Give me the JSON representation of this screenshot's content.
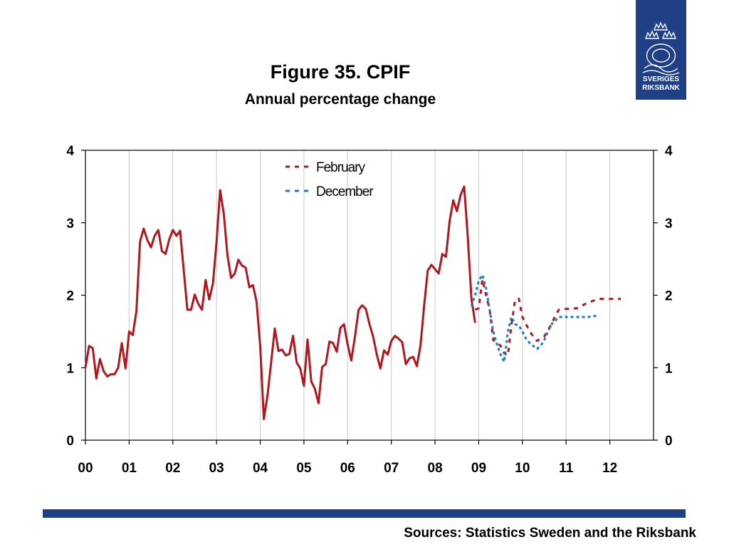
{
  "header": {
    "title": "Figure 35. CPIF",
    "subtitle": "Annual percentage change"
  },
  "logo": {
    "line1": "SVERIGES",
    "line2": "RIKSBANK",
    "color": "#1f3f86"
  },
  "footer": {
    "source": "Sources: Statistics Sweden and the Riksbank",
    "bar_color": "#1f3f86"
  },
  "chart_data": {
    "type": "line",
    "xlim": [
      2000.0,
      2013.0
    ],
    "ylim": [
      0,
      4
    ],
    "yticks": [
      0,
      1,
      2,
      3,
      4
    ],
    "y_axis_both_sides": true,
    "xtick_labels": [
      "00",
      "01",
      "02",
      "03",
      "04",
      "05",
      "06",
      "07",
      "08",
      "09",
      "10",
      "11",
      "12"
    ],
    "xtick_positions": [
      2000,
      2001,
      2002,
      2003,
      2004,
      2005,
      2006,
      2007,
      2008,
      2009,
      2010,
      2011,
      2012
    ],
    "grid": "vertical",
    "legend": {
      "position": "top-center"
    },
    "series": [
      {
        "name": "",
        "color": "#b0171f",
        "style": "solid",
        "x": [
          2000.0,
          2000.083,
          2000.167,
          2000.25,
          2000.333,
          2000.417,
          2000.5,
          2000.583,
          2000.667,
          2000.75,
          2000.833,
          2000.917,
          2001.0,
          2001.083,
          2001.167,
          2001.25,
          2001.333,
          2001.417,
          2001.5,
          2001.583,
          2001.667,
          2001.75,
          2001.833,
          2001.917,
          2002.0,
          2002.083,
          2002.167,
          2002.25,
          2002.333,
          2002.417,
          2002.5,
          2002.583,
          2002.667,
          2002.75,
          2002.833,
          2002.917,
          2003.0,
          2003.083,
          2003.167,
          2003.25,
          2003.333,
          2003.417,
          2003.5,
          2003.583,
          2003.667,
          2003.75,
          2003.833,
          2003.917,
          2004.0,
          2004.083,
          2004.167,
          2004.25,
          2004.333,
          2004.417,
          2004.5,
          2004.583,
          2004.667,
          2004.75,
          2004.833,
          2004.917,
          2005.0,
          2005.083,
          2005.167,
          2005.25,
          2005.333,
          2005.417,
          2005.5,
          2005.583,
          2005.667,
          2005.75,
          2005.833,
          2005.917,
          2006.0,
          2006.083,
          2006.167,
          2006.25,
          2006.333,
          2006.417,
          2006.5,
          2006.583,
          2006.667,
          2006.75,
          2006.833,
          2006.917,
          2007.0,
          2007.083,
          2007.167,
          2007.25,
          2007.333,
          2007.417,
          2007.5,
          2007.583,
          2007.667,
          2007.75,
          2007.833,
          2007.917,
          2008.0,
          2008.083,
          2008.167,
          2008.25,
          2008.333,
          2008.417,
          2008.5,
          2008.583,
          2008.667,
          2008.75,
          2008.833,
          2008.917
        ],
        "y": [
          1.0,
          1.3,
          1.27,
          0.85,
          1.12,
          0.95,
          0.88,
          0.91,
          0.91,
          1.0,
          1.34,
          0.99,
          1.5,
          1.45,
          1.78,
          2.74,
          2.92,
          2.76,
          2.66,
          2.82,
          2.9,
          2.61,
          2.57,
          2.77,
          2.9,
          2.82,
          2.89,
          2.34,
          1.8,
          1.8,
          2.01,
          1.88,
          1.8,
          2.21,
          1.94,
          2.16,
          2.74,
          3.45,
          3.12,
          2.55,
          2.24,
          2.3,
          2.49,
          2.41,
          2.38,
          2.11,
          2.14,
          1.91,
          1.3,
          0.29,
          0.62,
          1.08,
          1.54,
          1.23,
          1.25,
          1.17,
          1.19,
          1.44,
          1.07,
          0.99,
          0.75,
          1.39,
          0.81,
          0.71,
          0.51,
          1.01,
          1.05,
          1.36,
          1.34,
          1.22,
          1.55,
          1.6,
          1.32,
          1.1,
          1.43,
          1.8,
          1.86,
          1.81,
          1.6,
          1.43,
          1.18,
          0.99,
          1.24,
          1.18,
          1.37,
          1.44,
          1.4,
          1.35,
          1.05,
          1.13,
          1.15,
          1.02,
          1.3,
          1.85,
          2.34,
          2.42,
          2.36,
          2.3,
          2.57,
          2.53,
          3.02,
          3.31,
          3.16,
          3.38,
          3.5,
          2.8,
          1.95,
          1.62
        ]
      },
      {
        "name": "February",
        "color": "#b0171f",
        "style": "dashed",
        "x": [
          2008.917,
          2009.0,
          2009.083,
          2009.167,
          2009.25,
          2009.333,
          2009.417,
          2009.5,
          2009.583,
          2009.667,
          2009.75,
          2009.833,
          2009.917,
          2010.0,
          2010.083,
          2010.167,
          2010.25,
          2010.333,
          2010.417,
          2010.5,
          2010.583,
          2010.667,
          2010.75,
          2010.833,
          2010.917,
          2011.0,
          2011.25,
          2011.5,
          2011.75,
          2012.0,
          2012.25
        ],
        "y": [
          1.8,
          1.82,
          2.22,
          2.0,
          1.8,
          1.38,
          1.35,
          1.3,
          1.2,
          1.17,
          1.6,
          1.94,
          1.95,
          1.7,
          1.6,
          1.5,
          1.43,
          1.37,
          1.4,
          1.43,
          1.52,
          1.6,
          1.72,
          1.8,
          1.81,
          1.81,
          1.82,
          1.9,
          1.95,
          1.95,
          1.95
        ]
      },
      {
        "name": "December",
        "color": "#1a7ac8",
        "style": "dotted",
        "x": [
          2008.833,
          2008.917,
          2009.0,
          2009.083,
          2009.167,
          2009.25,
          2009.333,
          2009.417,
          2009.5,
          2009.583,
          2009.667,
          2009.75,
          2009.833,
          2009.917,
          2010.0,
          2010.083,
          2010.167,
          2010.25,
          2010.333,
          2010.417,
          2010.5,
          2010.583,
          2010.667,
          2010.75,
          2010.833,
          2010.917,
          2011.0,
          2011.25,
          2011.5,
          2011.75
        ],
        "y": [
          1.85,
          2.0,
          2.2,
          2.28,
          2.1,
          1.8,
          1.5,
          1.32,
          1.18,
          1.08,
          1.5,
          1.7,
          1.6,
          1.58,
          1.5,
          1.4,
          1.34,
          1.3,
          1.26,
          1.3,
          1.38,
          1.5,
          1.6,
          1.65,
          1.7,
          1.7,
          1.7,
          1.7,
          1.7,
          1.72
        ]
      }
    ]
  }
}
